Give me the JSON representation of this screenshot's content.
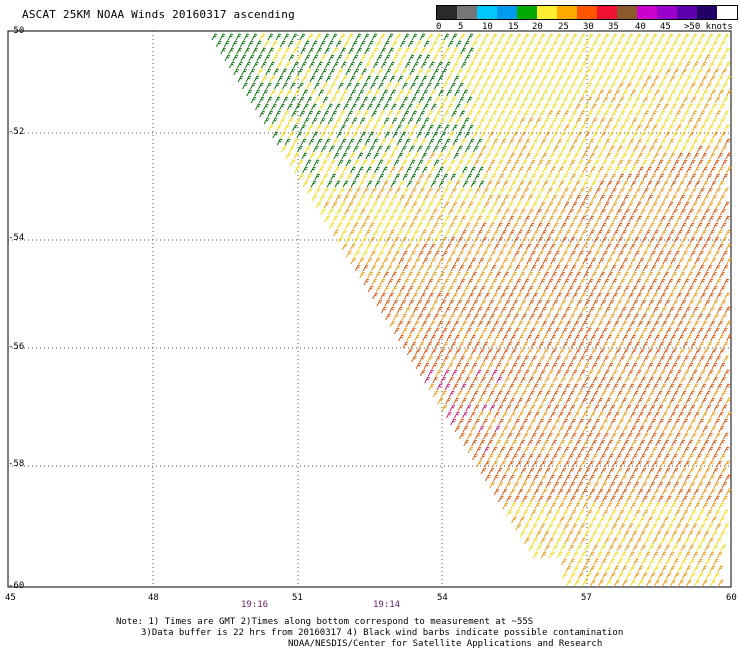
{
  "title": "ASCAT 25KM NOAA Winds 20160317 ascending",
  "legend": {
    "labels": [
      "0",
      "5",
      "10",
      "15",
      "20",
      "25",
      "30",
      "35",
      "40",
      "45",
      ">50 knots"
    ],
    "colors": [
      "#2a2a2a",
      "#777777",
      "#00c8ff",
      "#0099ee",
      "#00aa00",
      "#ffee33",
      "#ffaa00",
      "#ff5500",
      "#ee1133",
      "#8b5a2b",
      "#cc00cc",
      "#9900cc",
      "#5b00aa",
      "#220066"
    ]
  },
  "map": {
    "lat_labels": [
      "-50",
      "-52",
      "-54",
      "-56",
      "-58",
      "-60"
    ],
    "lon_labels": [
      "45",
      "48",
      "51",
      "54",
      "57",
      "60"
    ],
    "times": [
      "19:16",
      "19:14"
    ],
    "barb_colors": {
      "green": "#117711",
      "yellow": "#f4dc1e",
      "orange": "#ef9d1a",
      "red_orange": "#de5a12",
      "magenta": "#cc2277"
    }
  },
  "notes": [
    "Note: 1) Times are GMT 2)Times along bottom correspond to measurement at ~55S",
    "3)Data buffer is 22 hrs from 20160317 4) Black wind barbs indicate possible contamination",
    "NOAA/NESDIS/Center for Satellite Applications and Research"
  ]
}
